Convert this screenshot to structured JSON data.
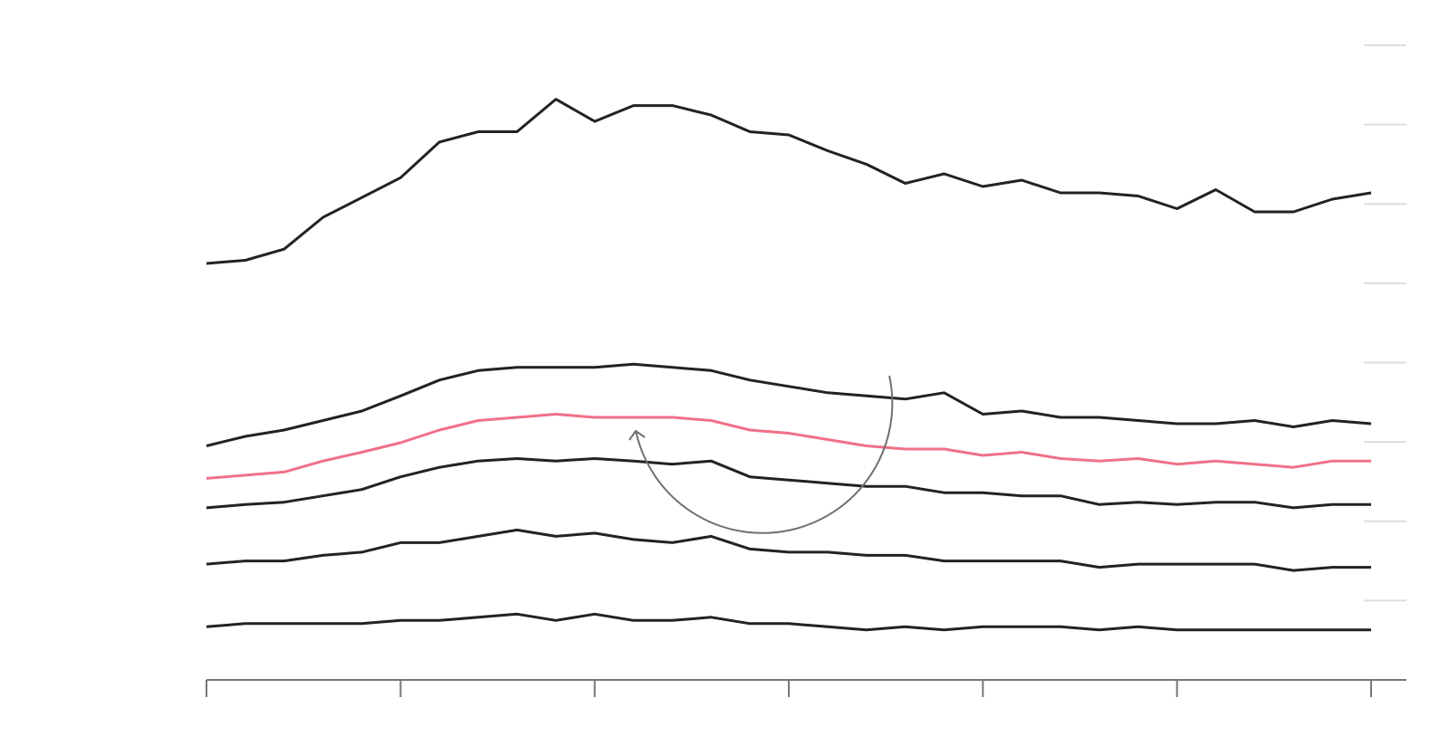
{
  "chart_data": {
    "type": "line",
    "title": "",
    "xlabel": "",
    "ylabel": "",
    "x_points": 31,
    "xlim": [
      0,
      30
    ],
    "ylim": [
      0,
      80
    ],
    "x_ticks": [
      0,
      5,
      10,
      15,
      20,
      25,
      30
    ],
    "y_gridlines": [
      10,
      20,
      30,
      40,
      50,
      60,
      70,
      80
    ],
    "grid": true,
    "legend": "none",
    "colors": {
      "default": "#222222",
      "highlight": "#f07088",
      "axis": "#777777",
      "grid": "#dddddd",
      "annotation": "#707070"
    },
    "series": [
      {
        "highlight": false,
        "values": [
          52.5,
          52.9,
          54.3,
          58.3,
          60.8,
          63.3,
          67.8,
          69.1,
          69.1,
          73.2,
          70.4,
          72.4,
          72.4,
          71.2,
          69.1,
          68.7,
          66.7,
          65.0,
          62.6,
          63.8,
          62.2,
          63.0,
          61.4,
          61.4,
          61.0,
          59.4,
          61.8,
          59.0,
          59.0,
          60.6,
          61.4
        ]
      },
      {
        "highlight": false,
        "values": [
          29.5,
          30.7,
          31.5,
          32.7,
          33.9,
          35.8,
          37.8,
          39.0,
          39.4,
          39.4,
          39.4,
          39.8,
          39.4,
          39.0,
          37.8,
          37.0,
          36.2,
          35.8,
          35.4,
          36.2,
          33.5,
          33.9,
          33.1,
          33.1,
          32.7,
          32.3,
          32.3,
          32.7,
          31.9,
          32.7,
          32.3
        ]
      },
      {
        "highlight": true,
        "values": [
          25.4,
          25.8,
          26.2,
          27.6,
          28.7,
          29.9,
          31.5,
          32.7,
          33.1,
          33.5,
          33.1,
          33.1,
          33.1,
          32.7,
          31.5,
          31.1,
          30.3,
          29.5,
          29.1,
          29.1,
          28.3,
          28.7,
          27.9,
          27.6,
          27.9,
          27.2,
          27.6,
          27.2,
          26.8,
          27.6,
          27.6
        ]
      },
      {
        "highlight": false,
        "values": [
          21.7,
          22.1,
          22.4,
          23.2,
          24.0,
          25.6,
          26.8,
          27.6,
          27.9,
          27.6,
          27.9,
          27.6,
          27.2,
          27.6,
          25.6,
          25.2,
          24.8,
          24.4,
          24.4,
          23.6,
          23.6,
          23.2,
          23.2,
          22.1,
          22.4,
          22.1,
          22.4,
          22.4,
          21.7,
          22.1,
          22.1
        ]
      },
      {
        "highlight": false,
        "values": [
          14.6,
          15.0,
          15.0,
          15.7,
          16.1,
          17.3,
          17.3,
          18.1,
          18.9,
          18.1,
          18.5,
          17.7,
          17.3,
          18.1,
          16.5,
          16.1,
          16.1,
          15.7,
          15.7,
          15.0,
          15.0,
          15.0,
          15.0,
          14.2,
          14.6,
          14.6,
          14.6,
          14.6,
          13.8,
          14.2,
          14.2
        ]
      },
      {
        "highlight": false,
        "values": [
          6.7,
          7.1,
          7.1,
          7.1,
          7.1,
          7.5,
          7.5,
          7.9,
          8.3,
          7.5,
          8.3,
          7.5,
          7.5,
          7.9,
          7.1,
          7.1,
          6.7,
          6.3,
          6.7,
          6.3,
          6.7,
          6.7,
          6.7,
          6.3,
          6.7,
          6.3,
          6.3,
          6.3,
          6.3,
          6.3,
          6.3
        ]
      }
    ]
  }
}
